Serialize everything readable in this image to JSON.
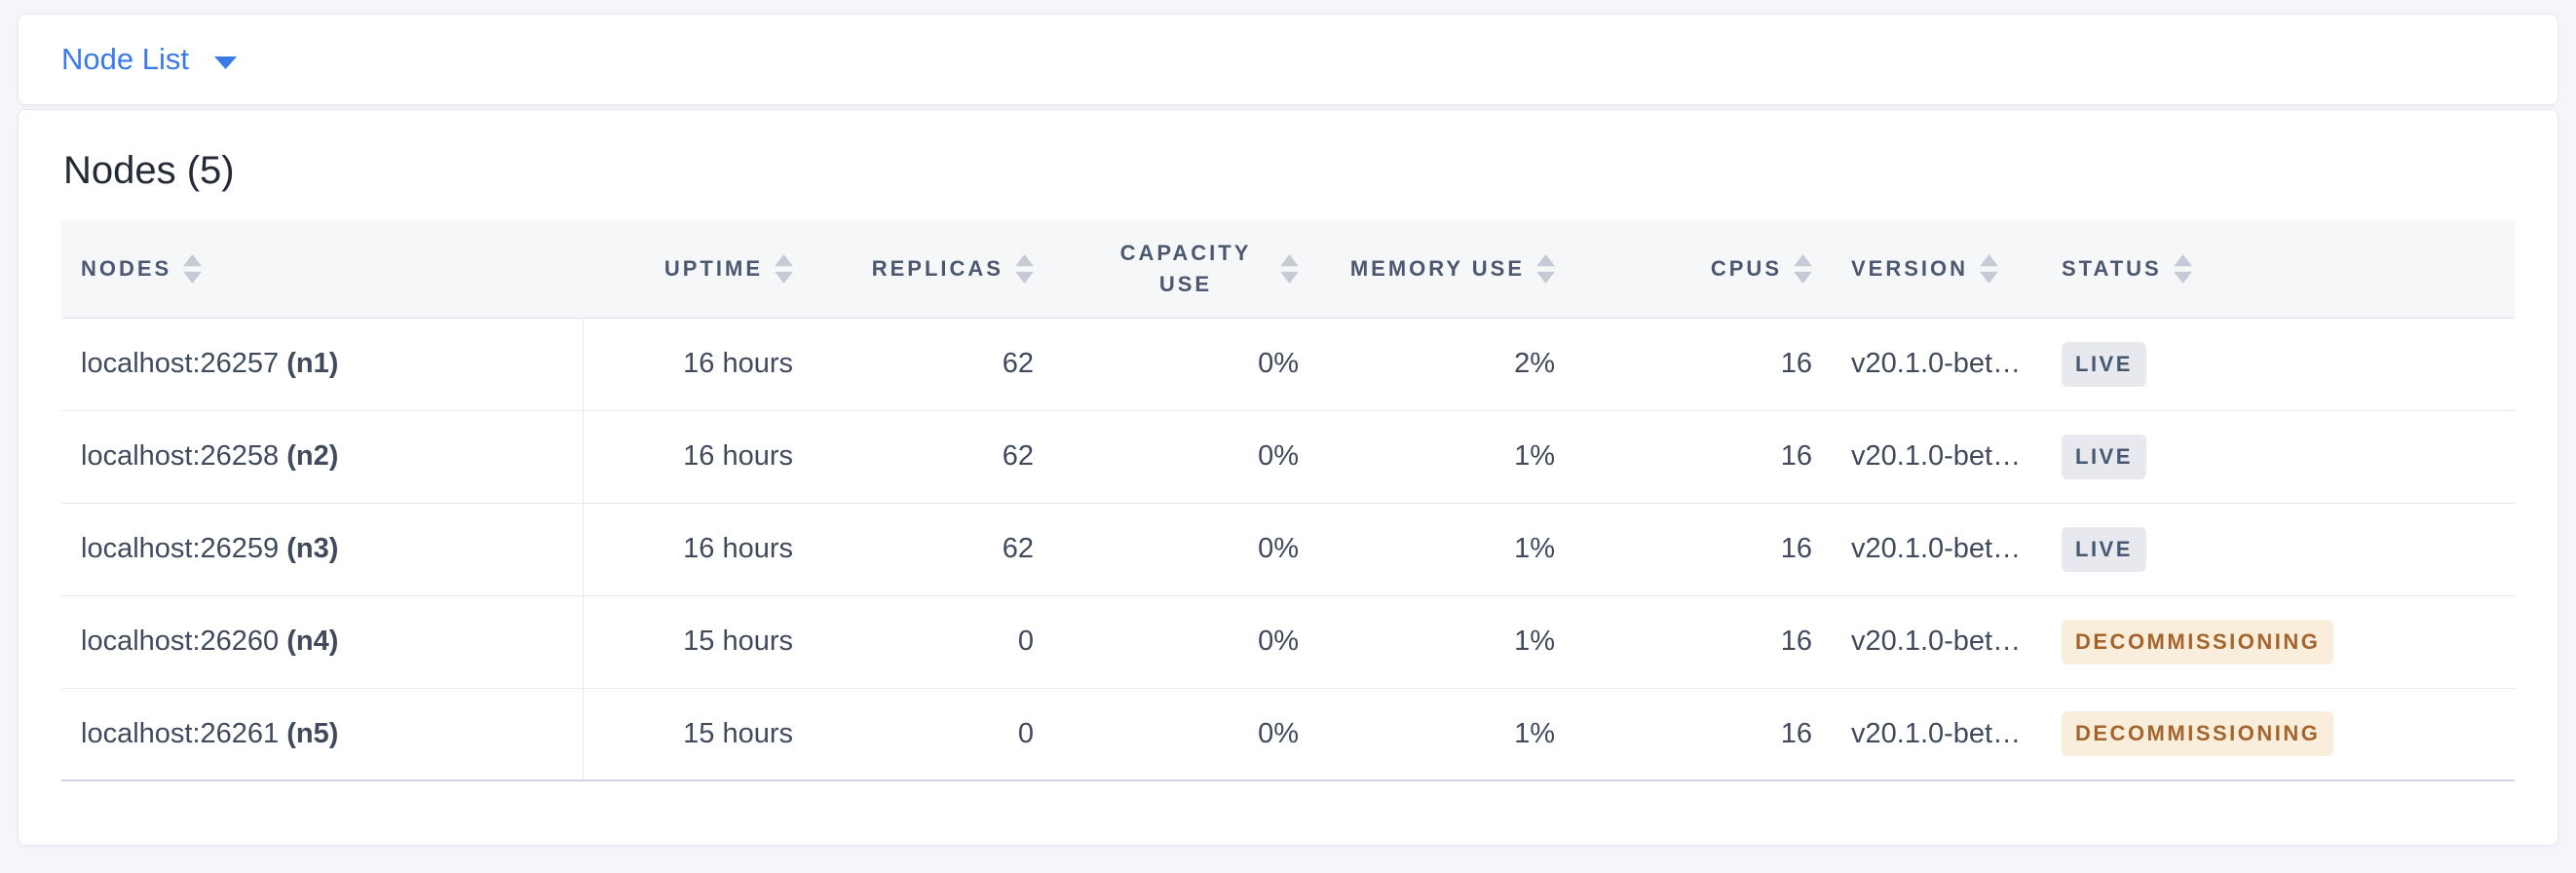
{
  "topbar": {
    "view_selector": {
      "label": "Node List",
      "accent_color": "#3B7BE8"
    }
  },
  "main": {
    "title": "Nodes (5)"
  },
  "table": {
    "columns": [
      {
        "id": "nodes",
        "label": "NODES",
        "sortable": true
      },
      {
        "id": "uptime",
        "label": "UPTIME",
        "sortable": true
      },
      {
        "id": "replicas",
        "label": "REPLICAS",
        "sortable": true
      },
      {
        "id": "capacity-use",
        "label": "CAPACITY USE",
        "sortable": true
      },
      {
        "id": "memory-use",
        "label": "MEMORY USE",
        "sortable": true
      },
      {
        "id": "cpus",
        "label": "CPUS",
        "sortable": true
      },
      {
        "id": "version",
        "label": "VERSION",
        "sortable": true
      },
      {
        "id": "status",
        "label": "STATUS",
        "sortable": true
      }
    ],
    "rows": [
      {
        "address": "localhost:26257",
        "name": "(n1)",
        "uptime": "16 hours",
        "replicas": "62",
        "capacity_use": "0%",
        "memory_use": "2%",
        "cpus": "16",
        "version": "v20.1.0-bet…",
        "status": "LIVE",
        "status_variant": "live"
      },
      {
        "address": "localhost:26258",
        "name": "(n2)",
        "uptime": "16 hours",
        "replicas": "62",
        "capacity_use": "0%",
        "memory_use": "1%",
        "cpus": "16",
        "version": "v20.1.0-bet…",
        "status": "LIVE",
        "status_variant": "live"
      },
      {
        "address": "localhost:26259",
        "name": "(n3)",
        "uptime": "16 hours",
        "replicas": "62",
        "capacity_use": "0%",
        "memory_use": "1%",
        "cpus": "16",
        "version": "v20.1.0-bet…",
        "status": "LIVE",
        "status_variant": "live"
      },
      {
        "address": "localhost:26260",
        "name": "(n4)",
        "uptime": "15 hours",
        "replicas": "0",
        "capacity_use": "0%",
        "memory_use": "1%",
        "cpus": "16",
        "version": "v20.1.0-bet…",
        "status": "DECOMMISSIONING",
        "status_variant": "decommissioning"
      },
      {
        "address": "localhost:26261",
        "name": "(n5)",
        "uptime": "15 hours",
        "replicas": "0",
        "capacity_use": "0%",
        "memory_use": "1%",
        "cpus": "16",
        "version": "v20.1.0-bet…",
        "status": "DECOMMISSIONING",
        "status_variant": "decommissioning"
      }
    ],
    "status_colors": {
      "live_bg": "#E7E9EF",
      "live_text": "#475872",
      "decommissioning_bg": "#F9EEDB",
      "decommissioning_text": "#A5642B"
    }
  }
}
